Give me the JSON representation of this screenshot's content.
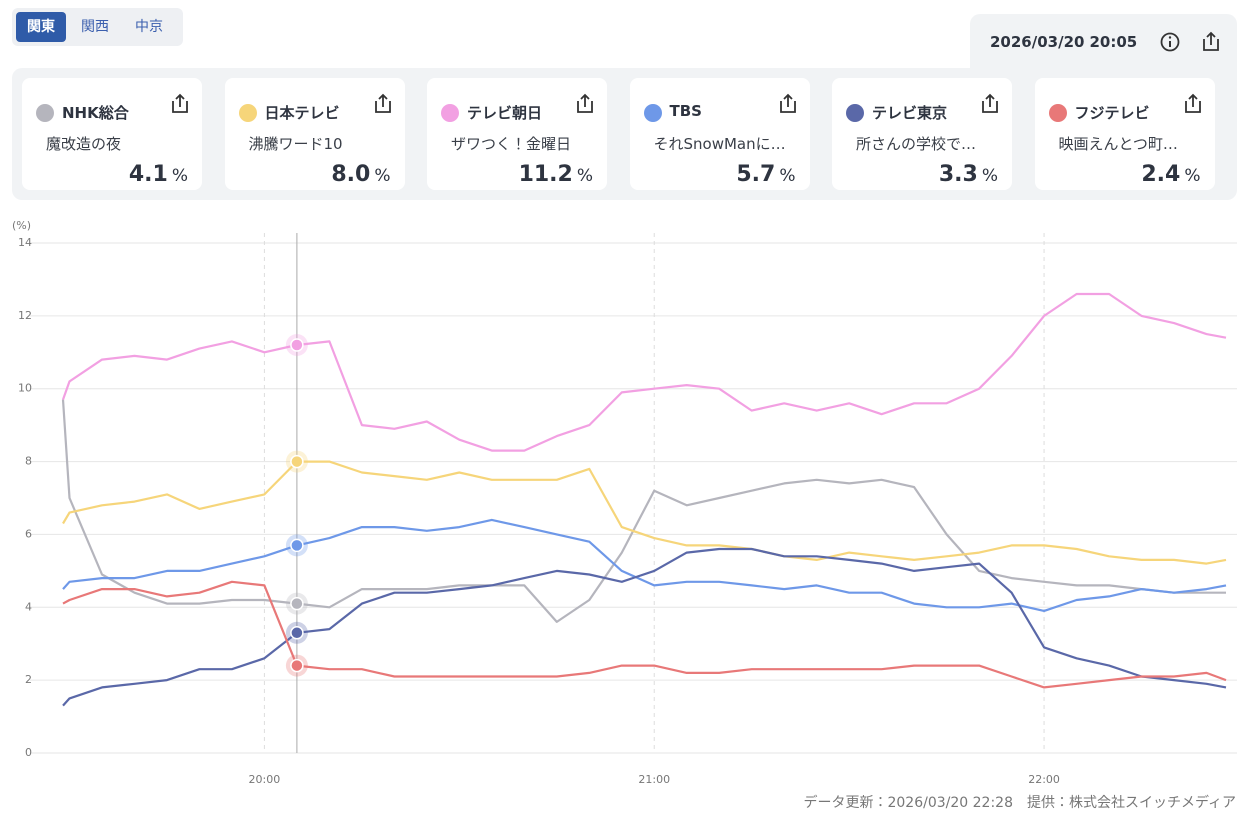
{
  "tabs": {
    "items": [
      "関東",
      "関西",
      "中京"
    ],
    "active": 0
  },
  "header": {
    "date": "2026/03/20",
    "time": "20:05"
  },
  "chart_data": {
    "type": "line",
    "unit": "%",
    "ylabel": "(%)",
    "x": [
      "19:29",
      "19:30",
      "19:35",
      "19:40",
      "19:45",
      "19:50",
      "19:55",
      "20:00",
      "20:05",
      "20:10",
      "20:15",
      "20:20",
      "20:25",
      "20:30",
      "20:35",
      "20:40",
      "20:45",
      "20:50",
      "20:55",
      "21:00",
      "21:05",
      "21:10",
      "21:15",
      "21:20",
      "21:25",
      "21:30",
      "21:35",
      "21:40",
      "21:45",
      "21:50",
      "21:55",
      "22:00",
      "22:05",
      "22:10",
      "22:15",
      "22:20",
      "22:25",
      "22:28"
    ],
    "xlim": [
      "19:29",
      "22:28"
    ],
    "xticks": [
      "20:00",
      "21:00",
      "22:00"
    ],
    "ylim": [
      0,
      14
    ],
    "yticks": [
      0,
      2,
      4,
      6,
      8,
      10,
      12,
      14
    ],
    "grid": true,
    "series": [
      {
        "name": "NHK総合",
        "program": "魔改造の夜",
        "rating": "4.1",
        "color": "#b5b5bd",
        "values": [
          9.7,
          7.0,
          4.9,
          4.4,
          4.1,
          4.1,
          4.2,
          4.2,
          4.1,
          4.0,
          4.5,
          4.5,
          4.5,
          4.6,
          4.6,
          4.6,
          3.6,
          4.2,
          5.5,
          7.2,
          6.8,
          7.0,
          7.2,
          7.4,
          7.5,
          7.4,
          7.5,
          7.3,
          6.0,
          5.0,
          4.8,
          4.7,
          4.6,
          4.6,
          4.5,
          4.4,
          4.4,
          4.4
        ]
      },
      {
        "name": "日本テレビ",
        "program": "沸騰ワード10",
        "rating": "8.0",
        "color": "#f6d57a",
        "values": [
          6.3,
          6.6,
          6.8,
          6.9,
          7.1,
          6.7,
          6.9,
          7.1,
          8.0,
          8.0,
          7.7,
          7.6,
          7.5,
          7.7,
          7.5,
          7.5,
          7.5,
          7.8,
          6.2,
          5.9,
          5.7,
          5.7,
          5.6,
          5.4,
          5.3,
          5.5,
          5.4,
          5.3,
          5.4,
          5.5,
          5.7,
          5.7,
          5.6,
          5.4,
          5.3,
          5.3,
          5.2,
          5.3
        ]
      },
      {
        "name": "テレビ朝日",
        "program": "ザワつく！金曜日",
        "rating": "11.2",
        "color": "#f2a0e2",
        "values": [
          9.7,
          10.2,
          10.8,
          10.9,
          10.8,
          11.1,
          11.3,
          11.0,
          11.2,
          11.3,
          9.0,
          8.9,
          9.1,
          8.6,
          8.3,
          8.3,
          8.7,
          9.0,
          9.9,
          10.0,
          10.1,
          10.0,
          9.4,
          9.6,
          9.4,
          9.6,
          9.3,
          9.6,
          9.6,
          10.0,
          10.9,
          12.0,
          12.6,
          12.6,
          12.0,
          11.8,
          11.5,
          11.4
        ]
      },
      {
        "name": "TBS",
        "program": "それSnowManに…",
        "rating": "5.7",
        "color": "#6e98e8",
        "values": [
          4.5,
          4.7,
          4.8,
          4.8,
          5.0,
          5.0,
          5.2,
          5.4,
          5.7,
          5.9,
          6.2,
          6.2,
          6.1,
          6.2,
          6.4,
          6.2,
          6.0,
          5.8,
          5.0,
          4.6,
          4.7,
          4.7,
          4.6,
          4.5,
          4.6,
          4.4,
          4.4,
          4.1,
          4.0,
          4.0,
          4.1,
          3.9,
          4.2,
          4.3,
          4.5,
          4.4,
          4.5,
          4.6
        ]
      },
      {
        "name": "テレビ東京",
        "program": "所さんの学校で…",
        "rating": "3.3",
        "color": "#5a68a8",
        "values": [
          1.3,
          1.5,
          1.8,
          1.9,
          2.0,
          2.3,
          2.3,
          2.6,
          3.3,
          3.4,
          4.1,
          4.4,
          4.4,
          4.5,
          4.6,
          4.8,
          5.0,
          4.9,
          4.7,
          5.0,
          5.5,
          5.6,
          5.6,
          5.4,
          5.4,
          5.3,
          5.2,
          5.0,
          5.1,
          5.2,
          4.4,
          2.9,
          2.6,
          2.4,
          2.1,
          2.0,
          1.9,
          1.8
        ]
      },
      {
        "name": "フジテレビ",
        "program": "映画えんとつ町…",
        "rating": "2.4",
        "color": "#e87878",
        "values": [
          4.1,
          4.2,
          4.5,
          4.5,
          4.3,
          4.4,
          4.7,
          4.6,
          2.4,
          2.3,
          2.3,
          2.1,
          2.1,
          2.1,
          2.1,
          2.1,
          2.1,
          2.2,
          2.4,
          2.4,
          2.2,
          2.2,
          2.3,
          2.3,
          2.3,
          2.3,
          2.3,
          2.4,
          2.4,
          2.4,
          2.1,
          1.8,
          1.9,
          2.0,
          2.1,
          2.1,
          2.2,
          2.0
        ]
      }
    ]
  },
  "footer": "データ更新：2026/03/20 22:28　提供：株式会社スイッチメディア"
}
